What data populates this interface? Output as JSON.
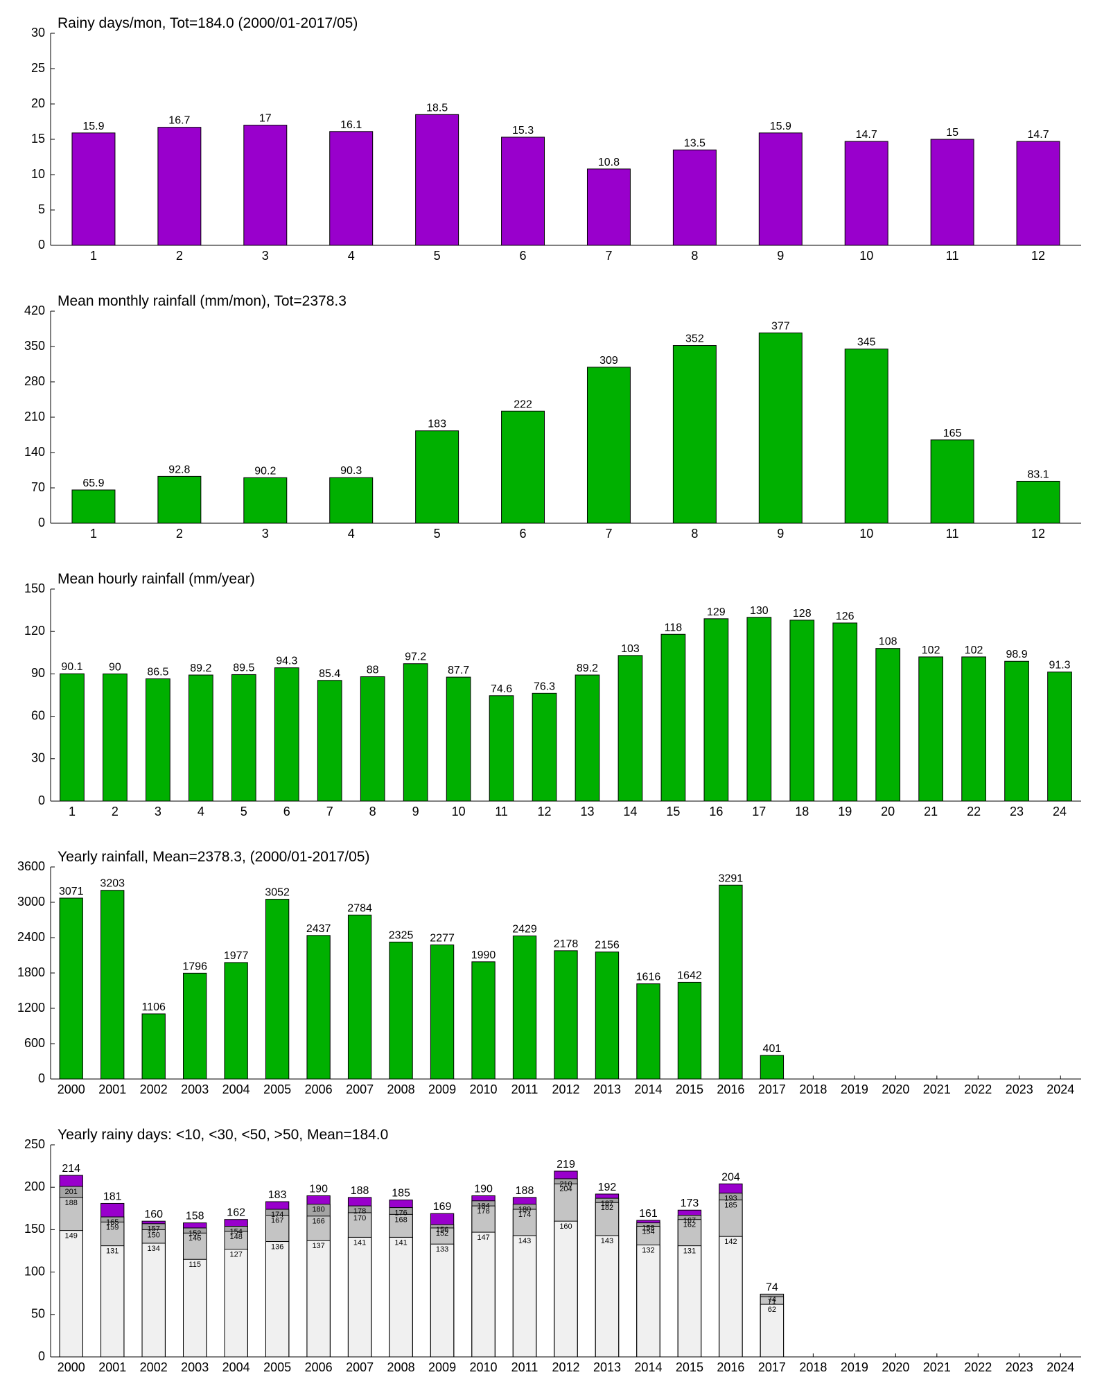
{
  "chart_data": [
    {
      "type": "bar",
      "title": "Rainy days/mon, Tot=184.0 (2000/01-2017/05)",
      "categories": [
        "1",
        "2",
        "3",
        "4",
        "5",
        "6",
        "7",
        "8",
        "9",
        "10",
        "11",
        "12"
      ],
      "values": [
        15.9,
        16.7,
        17,
        16.1,
        18.5,
        15.3,
        10.8,
        13.5,
        15.9,
        14.7,
        15,
        14.7
      ],
      "color": "#9900cc",
      "ylim": [
        0,
        30
      ],
      "yticks": [
        0,
        5,
        10,
        15,
        20,
        25,
        30
      ]
    },
    {
      "type": "bar",
      "title": "Mean monthly rainfall (mm/mon), Tot=2378.3",
      "categories": [
        "1",
        "2",
        "3",
        "4",
        "5",
        "6",
        "7",
        "8",
        "9",
        "10",
        "11",
        "12"
      ],
      "values": [
        65.9,
        92.8,
        90.2,
        90.3,
        183,
        222,
        309,
        352,
        377,
        345,
        165,
        83.1
      ],
      "color": "#00b000",
      "ylim": [
        0,
        420
      ],
      "yticks": [
        0,
        70,
        140,
        210,
        280,
        350,
        420
      ]
    },
    {
      "type": "bar",
      "title": "Mean hourly rainfall (mm/year)",
      "categories": [
        "1",
        "2",
        "3",
        "4",
        "5",
        "6",
        "7",
        "8",
        "9",
        "10",
        "11",
        "12",
        "13",
        "14",
        "15",
        "16",
        "17",
        "18",
        "19",
        "20",
        "21",
        "22",
        "23",
        "24"
      ],
      "values": [
        90.1,
        90,
        86.5,
        89.2,
        89.5,
        94.3,
        85.4,
        88,
        97.2,
        87.7,
        74.6,
        76.3,
        89.2,
        103,
        118,
        129,
        130,
        128,
        126,
        108,
        102,
        102,
        98.9,
        91.3
      ],
      "color": "#00b000",
      "ylim": [
        0,
        150
      ],
      "yticks": [
        0,
        30,
        60,
        90,
        120,
        150
      ]
    },
    {
      "type": "bar",
      "title": "Yearly rainfall, Mean=2378.3, (2000/01-2017/05)",
      "categories": [
        "2000",
        "2001",
        "2002",
        "2003",
        "2004",
        "2005",
        "2006",
        "2007",
        "2008",
        "2009",
        "2010",
        "2011",
        "2012",
        "2013",
        "2014",
        "2015",
        "2016",
        "2017",
        "2018",
        "2019",
        "2020",
        "2021",
        "2022",
        "2023",
        "2024"
      ],
      "values": [
        3071,
        3203,
        1106,
        1796,
        1977,
        3052,
        2437,
        2784,
        2325,
        2277,
        1990,
        2429,
        2178,
        2156,
        1616,
        1642,
        3291,
        401,
        null,
        null,
        null,
        null,
        null,
        null,
        null
      ],
      "color": "#00b000",
      "ylim": [
        0,
        3600
      ],
      "yticks": [
        0,
        600,
        1200,
        1800,
        2400,
        3000,
        3600
      ]
    },
    {
      "type": "overlay",
      "title": "Yearly rainy days: <10, <30, <50, >50, Mean=184.0",
      "categories": [
        "2000",
        "2001",
        "2002",
        "2003",
        "2004",
        "2005",
        "2006",
        "2007",
        "2008",
        "2009",
        "2010",
        "2011",
        "2012",
        "2013",
        "2014",
        "2015",
        "2016",
        "2017",
        "2018",
        "2019",
        "2020",
        "2021",
        "2022",
        "2023",
        "2024"
      ],
      "series": [
        {
          "color": "#f0f0f0",
          "values": [
            149,
            131,
            134,
            115,
            127,
            136,
            137,
            141,
            141,
            133,
            147,
            143,
            160,
            143,
            132,
            131,
            142,
            62,
            null,
            null,
            null,
            null,
            null,
            null,
            null
          ]
        },
        {
          "color": "#c4c4c4",
          "values": [
            188,
            159,
            150,
            146,
            148,
            167,
            166,
            170,
            168,
            152,
            178,
            174,
            204,
            182,
            154,
            162,
            185,
            71,
            null,
            null,
            null,
            null,
            null,
            null,
            null
          ]
        },
        {
          "color": "#a4a4a4",
          "values": [
            201,
            165,
            157,
            152,
            154,
            174,
            180,
            178,
            176,
            156,
            184,
            180,
            210,
            187,
            158,
            167,
            193,
            74,
            null,
            null,
            null,
            null,
            null,
            null,
            null
          ]
        },
        {
          "color": "#9900cc",
          "values": [
            214,
            181,
            160,
            158,
            162,
            183,
            190,
            188,
            185,
            169,
            190,
            188,
            219,
            192,
            161,
            173,
            204,
            74,
            null,
            null,
            null,
            null,
            null,
            null,
            null
          ]
        }
      ],
      "ylim": [
        0,
        250
      ],
      "yticks": [
        0,
        50,
        100,
        150,
        200,
        250
      ]
    }
  ]
}
